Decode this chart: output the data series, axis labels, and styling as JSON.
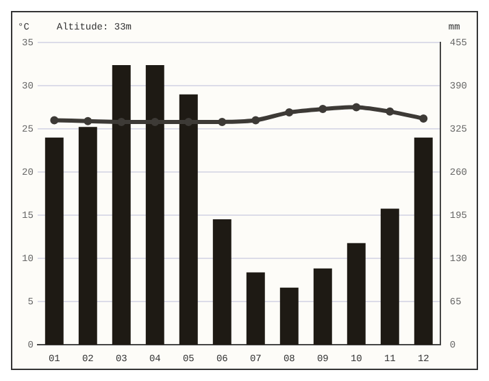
{
  "chart_data": {
    "type": "bar",
    "title": "Altitude: 33m",
    "ylabel": "°C",
    "y2label": "mm",
    "categories": [
      "01",
      "02",
      "03",
      "04",
      "05",
      "06",
      "07",
      "08",
      "09",
      "10",
      "11",
      "12"
    ],
    "series": [
      {
        "axis": "y2",
        "color": "#1e1a14",
        "values": [
          312,
          328,
          421,
          421,
          377,
          189,
          109,
          86,
          115,
          153,
          205,
          312
        ]
      },
      {
        "type": "line",
        "axis": "y",
        "color": "#3d3a36",
        "marker": "circle",
        "values": [
          26.0,
          25.9,
          25.8,
          25.8,
          25.8,
          25.8,
          26.0,
          26.9,
          27.3,
          27.5,
          27.0,
          26.2
        ]
      }
    ],
    "ylim": [
      0,
      35
    ],
    "yticks": [
      0,
      5,
      10,
      15,
      20,
      25,
      30,
      35
    ],
    "y2lim": [
      0,
      455
    ],
    "y2ticks": [
      0,
      65,
      130,
      195,
      260,
      325,
      390,
      455
    ],
    "grid": "y",
    "legend": false
  }
}
